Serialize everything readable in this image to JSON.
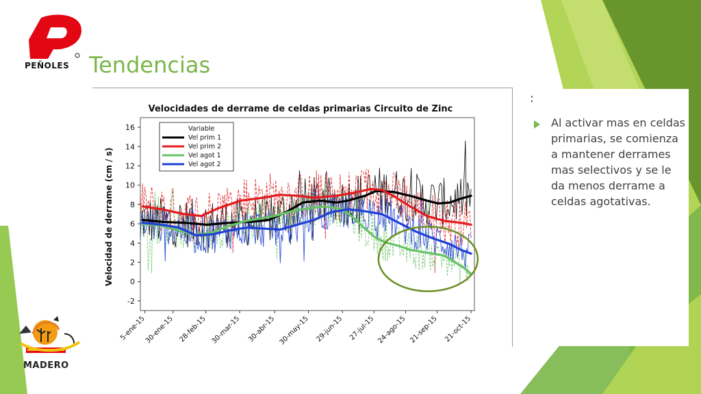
{
  "slide": {
    "title": "Tendencias",
    "colon": ":",
    "bullet": "Al activar mas en celdas primarias, se comienza a mantener derrames mas selectivos y se le da menos derrame a celdas agotativas.",
    "logo_top_text": "PEÑOLES",
    "logo_bottom_text": "MADERO",
    "accent_color": "#7ab648"
  },
  "chart_data": {
    "type": "line",
    "title": "Velocidades de derrame de celdas primarias Circuito de Zinc",
    "ylabel": "Velocidad de derrame (cm / s)",
    "xlabel": "",
    "ylim": [
      -3,
      17
    ],
    "yticks": [
      -2,
      0,
      2,
      4,
      6,
      8,
      10,
      12,
      14,
      16
    ],
    "x_ticks": [
      "5-ene-15",
      "30-ene-15",
      "28-feb-15",
      "30-mar-15",
      "30-abr-15",
      "30-may-15",
      "29-jun-15",
      "27-jul-15",
      "24-ago-15",
      "21-sep-15",
      "21-oct-15"
    ],
    "x_tick_days": [
      5,
      30,
      59,
      89,
      120,
      150,
      180,
      208,
      236,
      264,
      294
    ],
    "xlim": [
      1,
      297
    ],
    "grid": true,
    "legend": {
      "title": "Variable",
      "position": "top-left"
    },
    "series": [
      {
        "name": "Vel prim 1",
        "color": "#000000",
        "smooth": [
          [
            3,
            6.4
          ],
          [
            20,
            6.2
          ],
          [
            40,
            6.1
          ],
          [
            60,
            5.9
          ],
          [
            80,
            6.1
          ],
          [
            100,
            6.2
          ],
          [
            115,
            6.4
          ],
          [
            130,
            7.2
          ],
          [
            145,
            8.2
          ],
          [
            160,
            8.4
          ],
          [
            175,
            8.2
          ],
          [
            185,
            8.4
          ],
          [
            200,
            8.9
          ],
          [
            210,
            9.4
          ],
          [
            225,
            9.3
          ],
          [
            240,
            8.9
          ],
          [
            255,
            8.4
          ],
          [
            265,
            8.1
          ],
          [
            275,
            8.2
          ],
          [
            285,
            8.6
          ],
          [
            294,
            8.9
          ]
        ]
      },
      {
        "name": "Vel prim 2",
        "color": "#e31a1c",
        "smooth": [
          [
            3,
            7.8
          ],
          [
            20,
            7.5
          ],
          [
            40,
            7.0
          ],
          [
            55,
            6.8
          ],
          [
            70,
            7.6
          ],
          [
            90,
            8.4
          ],
          [
            110,
            8.7
          ],
          [
            125,
            9.0
          ],
          [
            140,
            8.9
          ],
          [
            155,
            8.7
          ],
          [
            175,
            8.9
          ],
          [
            190,
            9.2
          ],
          [
            205,
            9.6
          ],
          [
            215,
            9.5
          ],
          [
            225,
            8.9
          ],
          [
            240,
            7.8
          ],
          [
            255,
            6.8
          ],
          [
            270,
            6.3
          ],
          [
            285,
            6.1
          ],
          [
            294,
            5.9
          ]
        ]
      },
      {
        "name": "Vel agot 1",
        "color": "#66c266",
        "smooth": [
          [
            3,
            6.0
          ],
          [
            20,
            5.8
          ],
          [
            35,
            5.3
          ],
          [
            50,
            4.8
          ],
          [
            65,
            5.1
          ],
          [
            80,
            5.8
          ],
          [
            95,
            6.3
          ],
          [
            105,
            6.5
          ],
          [
            120,
            6.8
          ],
          [
            135,
            7.3
          ],
          [
            150,
            7.6
          ],
          [
            165,
            7.8
          ],
          [
            180,
            7.5
          ],
          [
            190,
            6.6
          ],
          [
            200,
            5.5
          ],
          [
            210,
            4.5
          ],
          [
            220,
            4.0
          ],
          [
            230,
            3.7
          ],
          [
            240,
            3.3
          ],
          [
            255,
            3.0
          ],
          [
            270,
            2.7
          ],
          [
            280,
            2.0
          ],
          [
            288,
            1.4
          ],
          [
            294,
            0.8
          ]
        ]
      },
      {
        "name": "Vel agot 2",
        "color": "#1f3fd6",
        "smooth": [
          [
            3,
            6.1
          ],
          [
            20,
            5.9
          ],
          [
            35,
            5.6
          ],
          [
            50,
            4.8
          ],
          [
            65,
            4.9
          ],
          [
            80,
            5.3
          ],
          [
            95,
            5.6
          ],
          [
            110,
            5.5
          ],
          [
            125,
            5.4
          ],
          [
            140,
            5.9
          ],
          [
            155,
            6.4
          ],
          [
            170,
            7.2
          ],
          [
            185,
            7.5
          ],
          [
            200,
            7.3
          ],
          [
            215,
            7.0
          ],
          [
            230,
            6.1
          ],
          [
            245,
            5.2
          ],
          [
            260,
            4.5
          ],
          [
            275,
            3.9
          ],
          [
            285,
            3.3
          ],
          [
            294,
            2.9
          ]
        ]
      }
    ],
    "annotation": {
      "type": "ellipse",
      "color": "#6b8e23",
      "x_range": [
        212,
        300
      ],
      "y_range": [
        -1.0,
        5.7
      ]
    }
  }
}
